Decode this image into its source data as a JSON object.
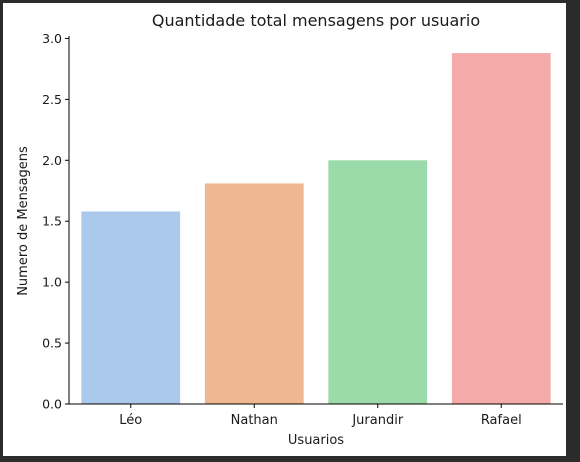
{
  "chart_data": {
    "type": "bar",
    "title": "Quantidade total mensagens por usuario",
    "xlabel": "Usuarios",
    "ylabel": "Numero de Mensagens",
    "categories": [
      "Léo",
      "Nathan",
      "Jurandir",
      "Rafael"
    ],
    "values": [
      1.58,
      1.81,
      2.0,
      2.88
    ],
    "colors": [
      "#abc9ea",
      "#efb792",
      "#9bdaa9",
      "#f4aaa8"
    ],
    "ylim": [
      0,
      3.02
    ],
    "yticks": [
      "0.0",
      "0.5",
      "1.0",
      "1.5",
      "2.0",
      "2.5",
      "3.0"
    ],
    "grid": false,
    "legend": "none"
  }
}
